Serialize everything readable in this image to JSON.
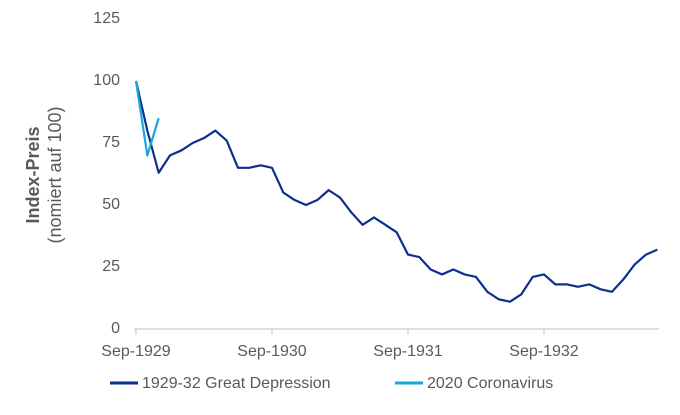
{
  "chart_data": {
    "type": "line",
    "y_label": "Index-Preis",
    "y_sublabel": "(nomiert auf 100)",
    "categories": [
      "Sep-1929",
      null,
      null,
      null,
      null,
      null,
      null,
      null,
      null,
      null,
      null,
      null,
      "Sep-1930",
      null,
      null,
      null,
      null,
      null,
      null,
      null,
      null,
      null,
      null,
      null,
      "Sep-1931",
      null,
      null,
      null,
      null,
      null,
      null,
      null,
      null,
      null,
      null,
      null,
      "Sep-1932",
      null,
      null,
      null,
      null,
      null,
      null,
      null,
      null,
      null,
      null
    ],
    "series": [
      {
        "name": "1929-32 Great Depression",
        "color": "#0d2f8f",
        "values": [
          100,
          80,
          63,
          70,
          72,
          75,
          77,
          80,
          76,
          65,
          65,
          66,
          65,
          55,
          52,
          50,
          52,
          56,
          53,
          47,
          42,
          45,
          42,
          39,
          30,
          29,
          24,
          22,
          24,
          22,
          21,
          15,
          12,
          11,
          14,
          21,
          22,
          18,
          18,
          17,
          18,
          16,
          15,
          20,
          26,
          30,
          32
        ]
      },
      {
        "name": "2020 Coronavirus",
        "color": "#1ba6db",
        "values": [
          100,
          70,
          85,
          null,
          null,
          null,
          null,
          null,
          null,
          null,
          null,
          null,
          null,
          null,
          null,
          null,
          null,
          null,
          null,
          null,
          null,
          null,
          null,
          null,
          null,
          null,
          null,
          null,
          null,
          null,
          null,
          null,
          null,
          null,
          null,
          null,
          null,
          null,
          null,
          null,
          null,
          null,
          null,
          null,
          null,
          null,
          null
        ]
      }
    ],
    "ylim": [
      0,
      125
    ],
    "yticks": [
      0,
      25,
      50,
      75,
      100,
      125
    ],
    "grid": false
  }
}
